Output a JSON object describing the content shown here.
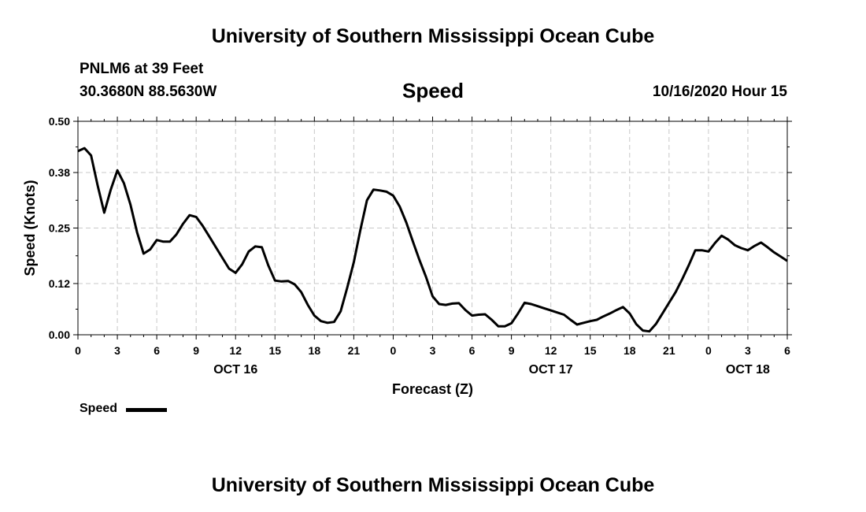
{
  "header": {
    "title": "University of Southern Mississippi Ocean Cube",
    "station": "PNLM6 at 39 Feet",
    "location": "30.3680N 88.5630W",
    "variable": "Speed",
    "datetime": "10/16/2020 Hour 15"
  },
  "footer": {
    "title": "University of Southern Mississippi Ocean Cube"
  },
  "legend": {
    "label": "Speed"
  },
  "chart_data": {
    "type": "line",
    "title": "Speed",
    "xlabel": "Forecast (Z)",
    "ylabel": "Speed (Knots)",
    "ylim": [
      0,
      0.5
    ],
    "yticks": [
      "0.00",
      "0.12",
      "0.25",
      "0.38",
      "0.50"
    ],
    "xlim": [
      0,
      54
    ],
    "xticks": [
      "0",
      "3",
      "6",
      "9",
      "12",
      "15",
      "18",
      "21",
      "0",
      "3",
      "6",
      "9",
      "12",
      "15",
      "18",
      "21",
      "0",
      "3",
      "6"
    ],
    "day_labels": [
      {
        "label": "OCT 16",
        "at_hour": 12
      },
      {
        "label": "OCT 17",
        "at_hour": 36
      },
      {
        "label": "OCT 18",
        "at_hour": 51
      }
    ],
    "grid": true,
    "series": [
      {
        "name": "Speed",
        "color": "#000000",
        "x": [
          0,
          0.5,
          1,
          1.5,
          2,
          2.5,
          3,
          3.5,
          4,
          4.5,
          5,
          5.5,
          6,
          6.5,
          7,
          7.5,
          8,
          8.5,
          9,
          9.5,
          10,
          10.5,
          11,
          11.5,
          12,
          12.5,
          13,
          13.5,
          14,
          14.5,
          15,
          15.5,
          16,
          16.5,
          17,
          17.5,
          18,
          18.5,
          19,
          19.5,
          20,
          20.5,
          21,
          21.5,
          22,
          22.5,
          23,
          23.5,
          24,
          24.5,
          25,
          25.5,
          26,
          26.5,
          27,
          27.5,
          28,
          28.5,
          29,
          29.5,
          30,
          30.5,
          31,
          31.5,
          32,
          32.5,
          33,
          33.5,
          34,
          34.5,
          35,
          35.5,
          36,
          36.5,
          37,
          37.5,
          38,
          38.5,
          39,
          39.5,
          40,
          40.5,
          41,
          41.5,
          42,
          42.5,
          43,
          43.5,
          44,
          44.5,
          45,
          45.5,
          46,
          46.5,
          47,
          47.5,
          48,
          48.5,
          49,
          49.5,
          50,
          50.5,
          51,
          51.5,
          52,
          52.5,
          53,
          53.5,
          54
        ],
        "values": [
          0.43,
          0.437,
          0.42,
          0.35,
          0.286,
          0.34,
          0.385,
          0.355,
          0.305,
          0.24,
          0.19,
          0.2,
          0.222,
          0.218,
          0.218,
          0.235,
          0.26,
          0.28,
          0.276,
          0.255,
          0.23,
          0.205,
          0.18,
          0.155,
          0.145,
          0.165,
          0.195,
          0.207,
          0.205,
          0.162,
          0.127,
          0.125,
          0.126,
          0.118,
          0.1,
          0.07,
          0.045,
          0.032,
          0.028,
          0.03,
          0.055,
          0.11,
          0.17,
          0.245,
          0.315,
          0.34,
          0.338,
          0.335,
          0.326,
          0.3,
          0.263,
          0.218,
          0.175,
          0.135,
          0.09,
          0.072,
          0.07,
          0.073,
          0.074,
          0.058,
          0.045,
          0.047,
          0.048,
          0.035,
          0.02,
          0.02,
          0.027,
          0.05,
          0.075,
          0.072,
          0.067,
          0.062,
          0.057,
          0.052,
          0.047,
          0.035,
          0.024,
          0.028,
          0.032,
          0.035,
          0.043,
          0.05,
          0.058,
          0.065,
          0.05,
          0.025,
          0.01,
          0.008,
          0.025,
          0.05,
          0.075,
          0.1,
          0.13,
          0.163,
          0.198,
          0.198,
          0.195,
          0.215,
          0.232,
          0.223,
          0.21,
          0.203,
          0.198,
          0.208,
          0.216,
          0.205,
          0.193,
          0.183,
          0.173
        ]
      }
    ]
  }
}
